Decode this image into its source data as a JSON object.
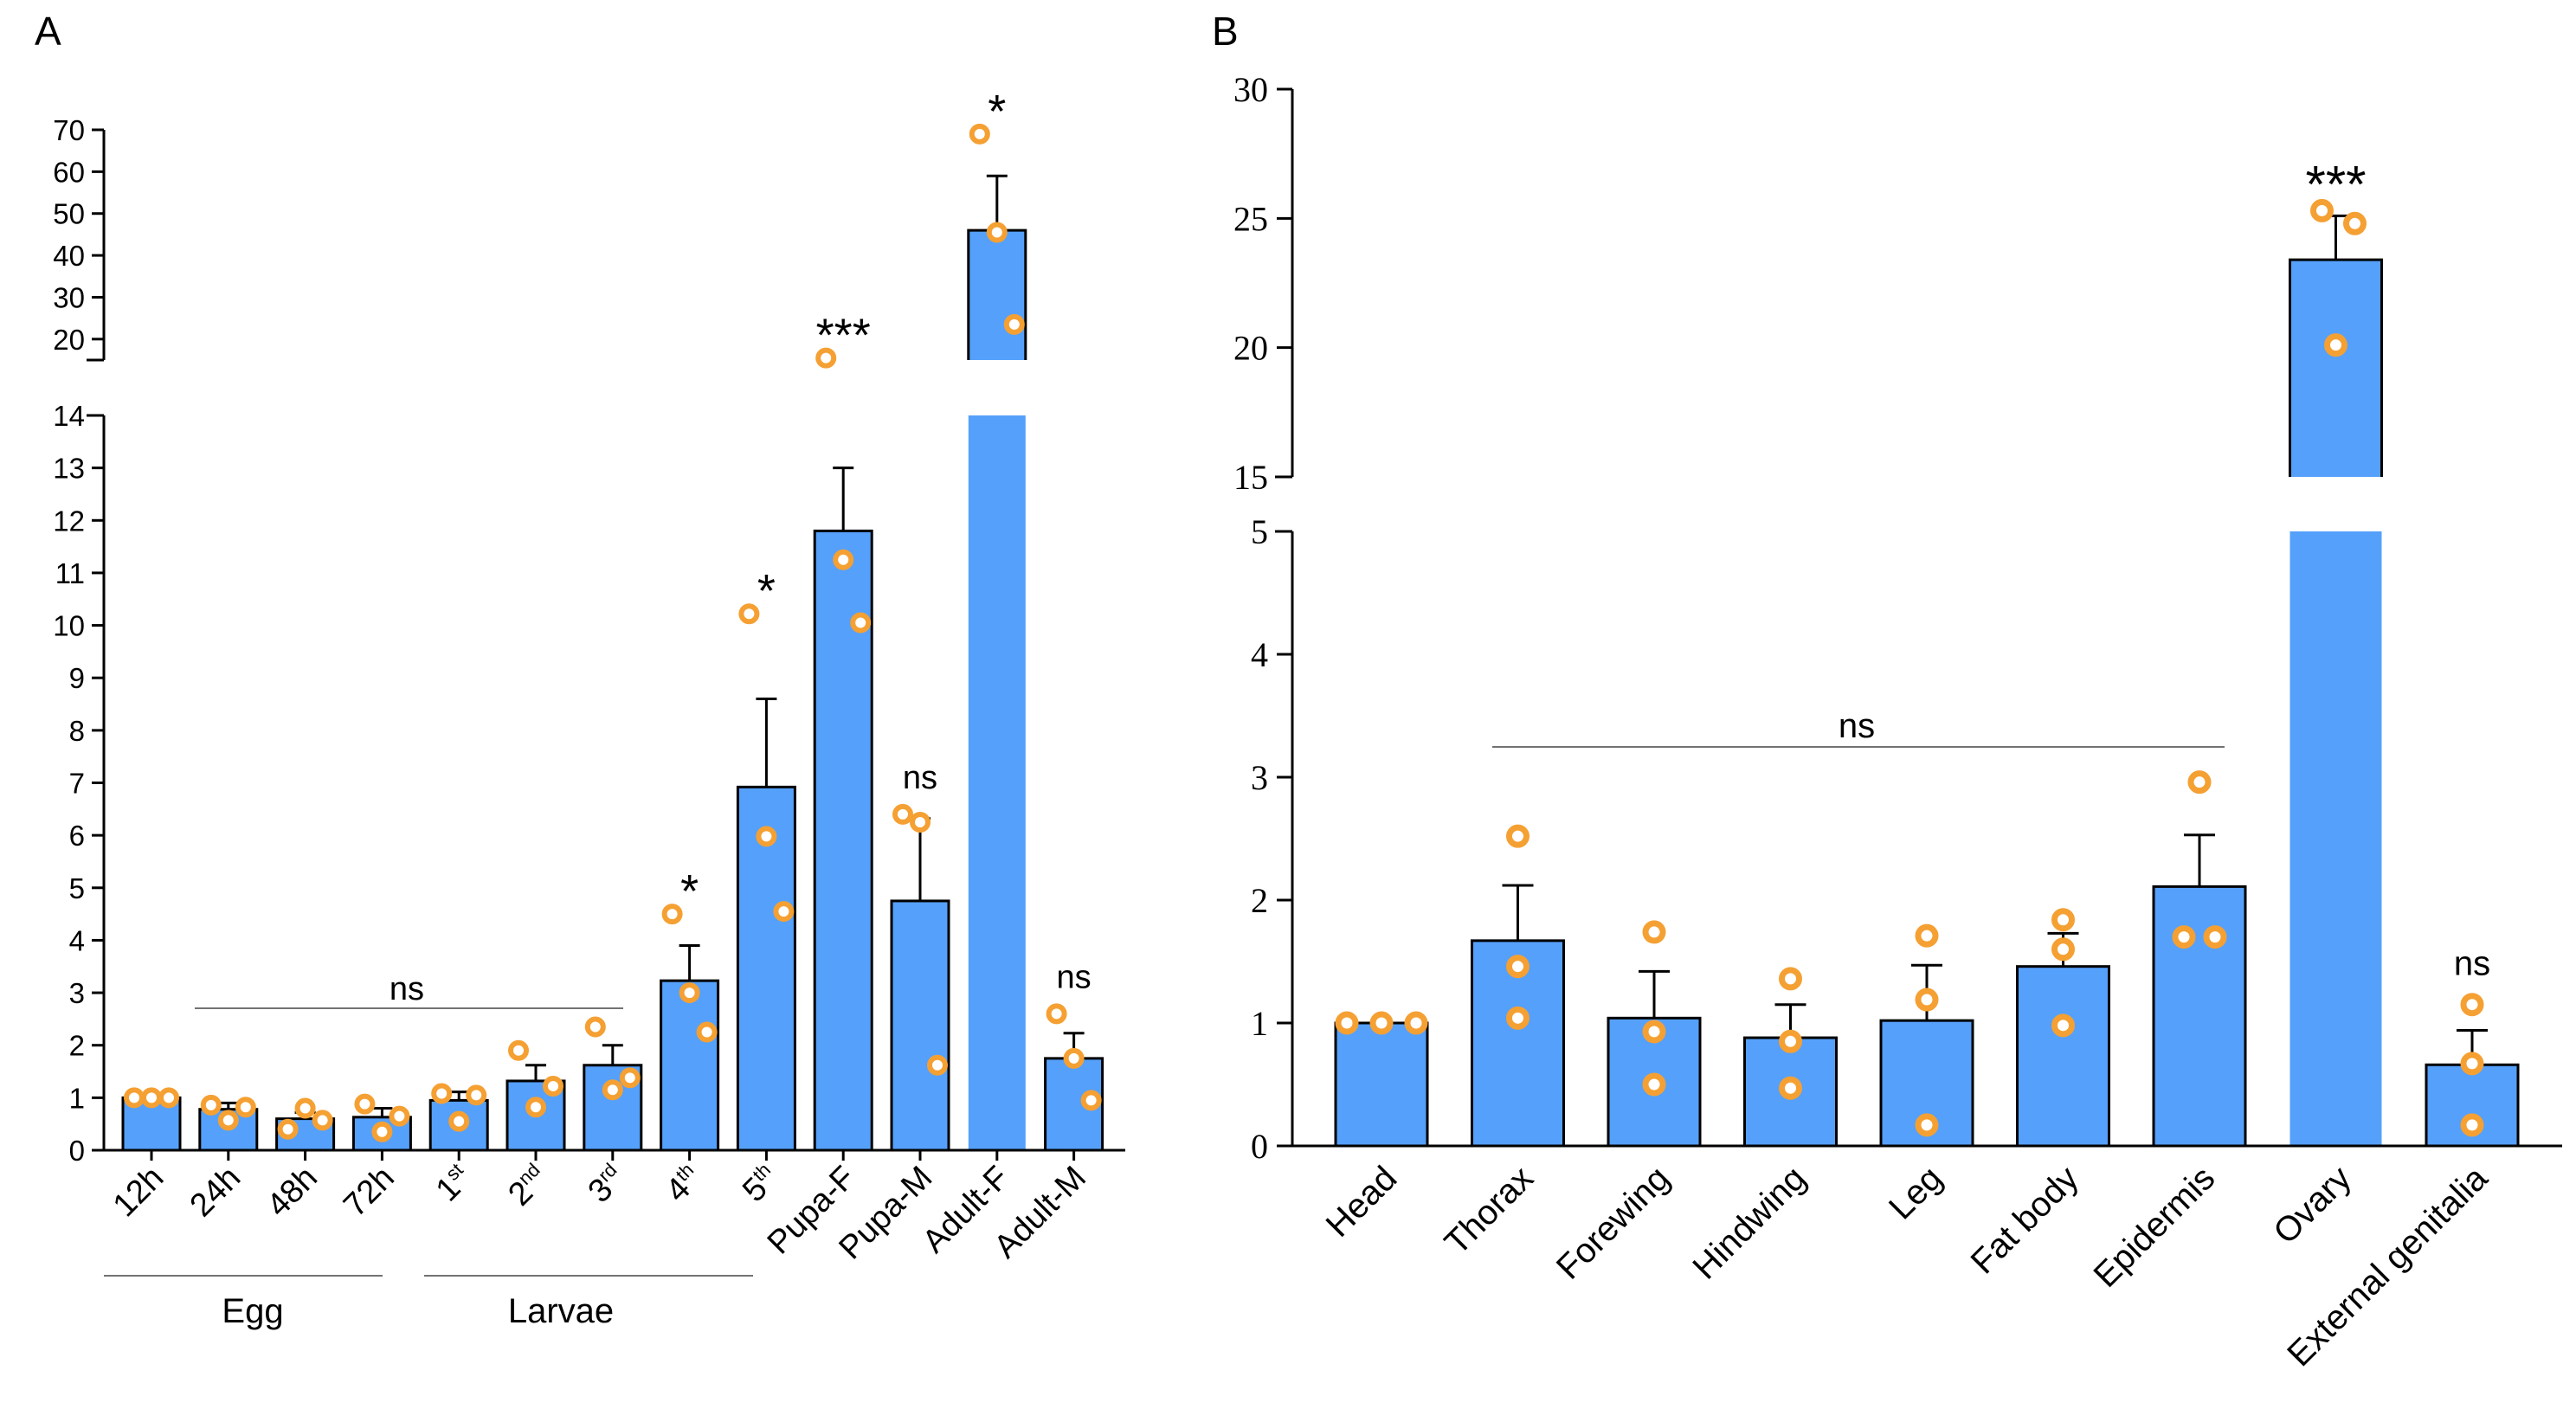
{
  "chart_data": [
    {
      "panel": "A",
      "type": "bar",
      "title": "",
      "xlabel": "",
      "ylabel": "",
      "colors": {
        "bar": "#55a0fa",
        "point": "#f5a033",
        "axis": "#000000"
      },
      "y_axis": {
        "lower_range": [
          0,
          14
        ],
        "upper_range": [
          15,
          70
        ],
        "lower_ticks": [
          "0",
          "1",
          "2",
          "3",
          "4",
          "5",
          "6",
          "7",
          "8",
          "9",
          "10",
          "11",
          "12",
          "13",
          "14"
        ],
        "upper_ticks": [
          "20",
          "30",
          "40",
          "50",
          "60",
          "70"
        ]
      },
      "categories": [
        {
          "main": "12h",
          "sup": ""
        },
        {
          "main": "24h",
          "sup": ""
        },
        {
          "main": "48h",
          "sup": ""
        },
        {
          "main": "72h",
          "sup": ""
        },
        {
          "main": "1",
          "sup": "st"
        },
        {
          "main": "2",
          "sup": "nd"
        },
        {
          "main": "3",
          "sup": "rd"
        },
        {
          "main": "4",
          "sup": "th"
        },
        {
          "main": "5",
          "sup": "th"
        },
        {
          "main": "Pupa-F",
          "sup": ""
        },
        {
          "main": "Pupa-M",
          "sup": ""
        },
        {
          "main": "Adult-F",
          "sup": ""
        },
        {
          "main": "Adult-M",
          "sup": ""
        }
      ],
      "values": [
        1.0,
        0.78,
        0.6,
        0.63,
        0.95,
        1.32,
        1.62,
        3.23,
        6.92,
        11.8,
        4.75,
        46.0,
        1.75
      ],
      "errors": [
        0.02,
        0.12,
        0.12,
        0.17,
        0.16,
        0.3,
        0.38,
        0.67,
        1.68,
        1.2,
        1.57,
        13.0,
        0.48
      ],
      "points": [
        [
          1.0,
          1.0,
          1.0
        ],
        [
          0.86,
          0.57,
          0.82
        ],
        [
          0.4,
          0.8,
          0.57
        ],
        [
          0.88,
          0.35,
          0.65
        ],
        [
          1.08,
          0.55,
          1.05
        ],
        [
          1.9,
          0.82,
          1.22
        ],
        [
          2.35,
          1.15,
          1.38
        ],
        [
          4.5,
          3.0,
          2.25
        ],
        [
          10.22,
          5.98,
          4.55
        ],
        [
          15.5,
          11.25,
          10.05
        ],
        [
          6.4,
          6.25,
          1.62
        ],
        [
          69.0,
          45.5,
          23.5
        ],
        [
          2.6,
          1.75,
          0.95
        ]
      ],
      "significance": [
        "",
        "",
        "",
        "",
        "",
        "",
        "",
        "*",
        "*",
        "***",
        "ns",
        "*",
        "ns"
      ],
      "bracket_label": "ns",
      "groups": [
        {
          "label": "Egg"
        },
        {
          "label": "Larvae"
        }
      ]
    },
    {
      "panel": "B",
      "type": "bar",
      "title": "",
      "xlabel": "",
      "ylabel": "",
      "colors": {
        "bar": "#55a0fa",
        "point": "#f5a033",
        "axis": "#000000"
      },
      "y_axis": {
        "lower_range": [
          0,
          5
        ],
        "upper_range": [
          15,
          30
        ],
        "lower_ticks": [
          "0",
          "1",
          "2",
          "3",
          "4",
          "5"
        ],
        "upper_ticks": [
          "15",
          "20",
          "25",
          "30"
        ]
      },
      "categories": [
        "Head",
        "Thorax",
        "Forewing",
        "Hindwing",
        "Leg",
        "Fat body",
        "Epidermis",
        "Ovary",
        "External genitalia"
      ],
      "values": [
        1.0,
        1.67,
        1.04,
        0.88,
        1.02,
        1.46,
        2.11,
        23.4,
        0.66
      ],
      "errors": [
        0.0,
        0.45,
        0.38,
        0.27,
        0.45,
        0.27,
        0.42,
        1.7,
        0.28
      ],
      "points": [
        [
          1.0,
          1.0,
          1.0
        ],
        [
          2.52,
          1.46,
          1.04
        ],
        [
          1.74,
          0.93,
          0.5
        ],
        [
          1.36,
          0.85,
          0.47
        ],
        [
          1.71,
          1.19,
          0.17
        ],
        [
          1.84,
          1.6,
          0.98
        ],
        [
          2.96,
          1.7,
          1.7
        ],
        [
          25.3,
          24.8,
          20.1
        ],
        [
          1.15,
          0.67,
          0.17
        ]
      ],
      "significance": [
        "",
        "",
        "",
        "",
        "",
        "",
        "",
        "***",
        "ns"
      ],
      "bracket_label": "ns"
    }
  ]
}
